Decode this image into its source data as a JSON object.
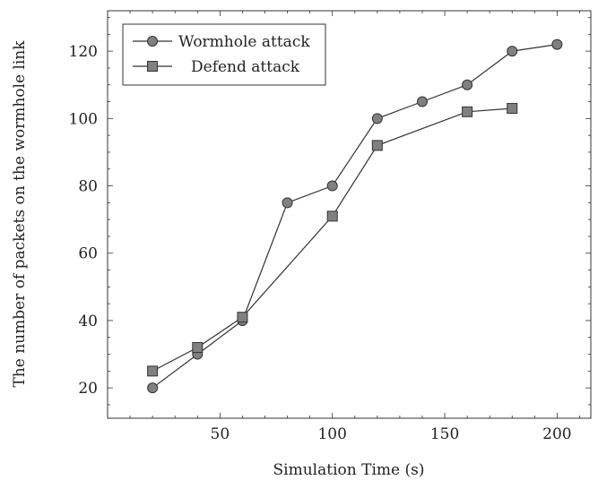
{
  "chart_data": {
    "type": "line",
    "title": "",
    "xlabel": "Simulation Time (s)",
    "ylabel": "The number of packets on the wormhole link",
    "xlim": [
      0,
      215
    ],
    "ylim": [
      11,
      132
    ],
    "xticks": [
      50,
      100,
      150,
      200
    ],
    "yticks": [
      20,
      40,
      60,
      80,
      100,
      120
    ],
    "grid": false,
    "legend_position": "top-left",
    "series": [
      {
        "name": "Wormhole attack",
        "marker": "circle",
        "color": "#808080",
        "x": [
          20,
          40,
          60,
          80,
          100,
          120,
          140,
          160,
          180,
          200
        ],
        "y": [
          20,
          30,
          40,
          75,
          80,
          100,
          105,
          110,
          120,
          122
        ]
      },
      {
        "name": "Defend attack",
        "marker": "square",
        "color": "#808080",
        "x": [
          20,
          40,
          60,
          100,
          120,
          160,
          180
        ],
        "y": [
          25,
          32,
          41,
          71,
          92,
          102,
          103
        ]
      }
    ]
  }
}
